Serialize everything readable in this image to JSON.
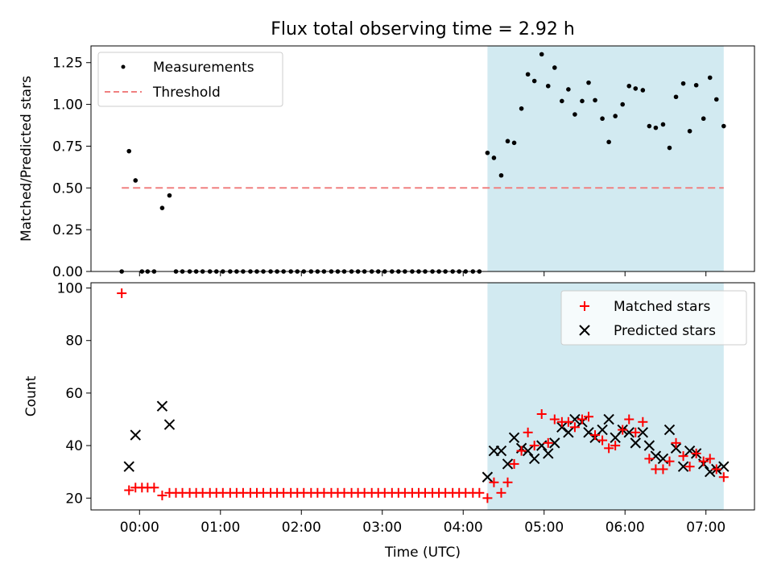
{
  "chart_data": {
    "title": "Flux total observing time = 2.92 h",
    "x_axis": {
      "label": "Time (UTC)",
      "units": "hours after 00:00 UTC",
      "range": [
        -0.6,
        7.6
      ],
      "tick_values": [
        0,
        1,
        2,
        3,
        4,
        5,
        6,
        7
      ],
      "tick_labels": [
        "00:00",
        "01:00",
        "02:00",
        "03:00",
        "04:00",
        "05:00",
        "06:00",
        "07:00"
      ]
    },
    "shaded_span": {
      "from": 4.3,
      "to": 7.22,
      "color": "#add8e6"
    },
    "x": [
      -0.22,
      -0.13,
      -0.05,
      0.03,
      0.1,
      0.18,
      0.28,
      0.37,
      0.45,
      0.53,
      0.62,
      0.7,
      0.78,
      0.87,
      0.95,
      1.03,
      1.12,
      1.2,
      1.28,
      1.37,
      1.45,
      1.53,
      1.62,
      1.7,
      1.78,
      1.87,
      1.95,
      2.03,
      2.12,
      2.2,
      2.28,
      2.37,
      2.45,
      2.53,
      2.62,
      2.7,
      2.78,
      2.87,
      2.95,
      3.03,
      3.12,
      3.2,
      3.28,
      3.37,
      3.45,
      3.53,
      3.62,
      3.7,
      3.78,
      3.87,
      3.95,
      4.03,
      4.12,
      4.2,
      4.3,
      4.38,
      4.47,
      4.55,
      4.63,
      4.72,
      4.8,
      4.88,
      4.97,
      5.05,
      5.13,
      5.22,
      5.3,
      5.38,
      5.47,
      5.55,
      5.63,
      5.72,
      5.8,
      5.88,
      5.97,
      6.05,
      6.13,
      6.22,
      6.3,
      6.38,
      6.47,
      6.55,
      6.63,
      6.72,
      6.8,
      6.88,
      6.97,
      7.05,
      7.13,
      7.22
    ],
    "panels": [
      {
        "type": "scatter",
        "ylabel": "Matched/Predicted stars",
        "ylim": [
          0,
          1.35
        ],
        "yticks": [
          0,
          0.25,
          0.5,
          0.75,
          1.0,
          1.25
        ],
        "ytick_labels": [
          "0.00",
          "0.25",
          "0.50",
          "0.75",
          "1.00",
          "1.25"
        ],
        "legend_position": "top-left",
        "series": [
          {
            "name": "Measurements",
            "marker": "dot",
            "color": "#000000",
            "values": [
              0,
              0.72,
              0.545,
              0,
              0,
              0,
              0.38,
              0.455,
              0,
              0,
              0,
              0,
              0,
              0,
              0,
              0,
              0,
              0,
              0,
              0,
              0,
              0,
              0,
              0,
              0,
              0,
              0,
              0,
              0,
              0,
              0,
              0,
              0,
              0,
              0,
              0,
              0,
              0,
              0,
              0,
              0,
              0,
              0,
              0,
              0,
              0,
              0,
              0,
              0,
              0,
              0,
              0,
              0,
              0,
              0.71,
              0.68,
              0.575,
              0.78,
              0.77,
              0.975,
              1.18,
              1.14,
              1.3,
              1.11,
              1.22,
              1.02,
              1.09,
              0.94,
              1.02,
              1.13,
              1.025,
              0.915,
              0.775,
              0.93,
              1.0,
              1.11,
              1.095,
              1.085,
              0.87,
              0.86,
              0.88,
              0.74,
              1.045,
              1.125,
              0.84,
              1.115,
              0.915,
              1.16,
              1.03,
              0.87
            ]
          },
          {
            "name": "Threshold",
            "type": "line",
            "style": "dashed",
            "color": "#f08080",
            "x_range": [
              -0.22,
              7.22
            ],
            "value": 0.5
          }
        ]
      },
      {
        "type": "scatter",
        "ylabel": "Count",
        "ylim": [
          15.5,
          102
        ],
        "yticks": [
          20,
          40,
          60,
          80,
          100
        ],
        "ytick_labels": [
          "20",
          "40",
          "60",
          "80",
          "100"
        ],
        "legend_position": "top-right",
        "series": [
          {
            "name": "Matched stars",
            "marker": "plus",
            "color": "#ff0000",
            "values": [
              98,
              23,
              24,
              24,
              24,
              24,
              21,
              22,
              22,
              22,
              22,
              22,
              22,
              22,
              22,
              22,
              22,
              22,
              22,
              22,
              22,
              22,
              22,
              22,
              22,
              22,
              22,
              22,
              22,
              22,
              22,
              22,
              22,
              22,
              22,
              22,
              22,
              22,
              22,
              22,
              22,
              22,
              22,
              22,
              22,
              22,
              22,
              22,
              22,
              22,
              22,
              22,
              22,
              22,
              20,
              26,
              22,
              26,
              33,
              38,
              45,
              40,
              52,
              41,
              50,
              49,
              49,
              47,
              50,
              51,
              44,
              42,
              39,
              40,
              46,
              50,
              45,
              49,
              35,
              31,
              31,
              34,
              41,
              36,
              32,
              37,
              34,
              35,
              31,
              28
            ]
          },
          {
            "name": "Predicted stars",
            "marker": "x",
            "color": "#000000",
            "values": [
              null,
              32,
              44,
              null,
              null,
              null,
              55,
              48,
              null,
              null,
              null,
              null,
              null,
              null,
              null,
              null,
              null,
              null,
              null,
              null,
              null,
              null,
              null,
              null,
              null,
              null,
              null,
              null,
              null,
              null,
              null,
              null,
              null,
              null,
              null,
              null,
              null,
              null,
              null,
              null,
              null,
              null,
              null,
              null,
              null,
              null,
              null,
              null,
              null,
              null,
              null,
              null,
              null,
              null,
              28,
              38,
              38,
              33,
              43,
              39,
              38,
              35,
              40,
              37,
              41,
              47,
              45,
              50,
              49,
              45,
              43,
              46,
              50,
              43,
              46,
              45,
              41,
              45,
              40,
              36,
              35,
              46,
              39,
              32,
              38,
              37,
              33,
              30,
              31,
              32
            ]
          }
        ]
      }
    ]
  }
}
